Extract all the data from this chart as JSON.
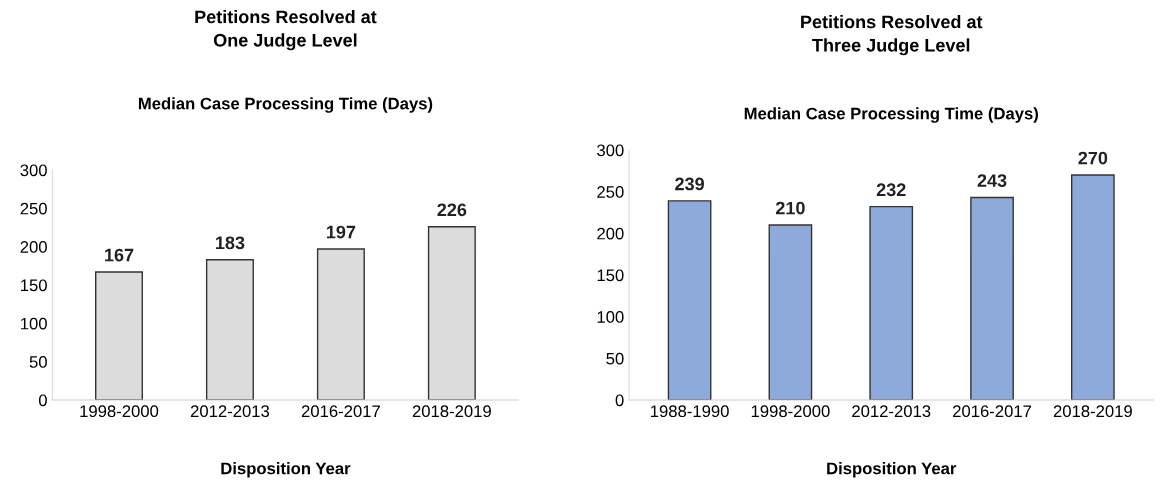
{
  "chart_data": [
    {
      "type": "bar",
      "title": "Petitions Resolved at\nOne Judge Level",
      "subtitle": "Median Case Processing Time (Days)",
      "xlabel": "Disposition Year",
      "categories": [
        "1998-2000",
        "2012-2013",
        "2016-2017",
        "2018-2019"
      ],
      "values": [
        167,
        183,
        197,
        226
      ],
      "color": "#dcdcdc",
      "ylim": [
        0,
        300
      ],
      "yticks": [
        0,
        50,
        100,
        150,
        200,
        250,
        300
      ],
      "grid": false,
      "data_labels": true
    },
    {
      "type": "bar",
      "title": "Petitions Resolved at\nThree Judge Level",
      "subtitle": "Median Case Processing Time (Days)",
      "xlabel": "Disposition Year",
      "categories": [
        "1988-1990",
        "1998-2000",
        "2012-2013",
        "2016-2017",
        "2018-2019"
      ],
      "values": [
        239,
        210,
        232,
        243,
        270
      ],
      "color": "#8eaadb",
      "ylim": [
        0,
        300
      ],
      "yticks": [
        0,
        50,
        100,
        150,
        200,
        250,
        300
      ],
      "grid": false,
      "data_labels": true
    }
  ]
}
